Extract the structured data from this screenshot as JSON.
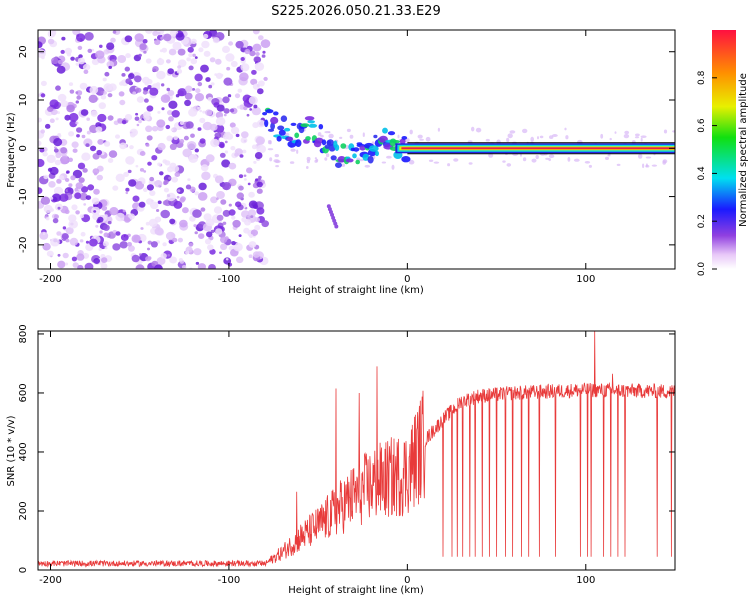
{
  "title": "S225.2026.050.21.33.E29",
  "colors": {
    "signal_line": "#e83a3a",
    "noise_purple": "#7a2be0",
    "band": "#e8204a"
  },
  "chart_data": [
    {
      "type": "heatmap",
      "xlabel": "Height of straight line (km)",
      "ylabel": "Frequency (Hz)",
      "xlim": [
        -207,
        150
      ],
      "ylim": [
        -25,
        24.5
      ],
      "xticks": [
        {
          "value": -200,
          "label": "-200"
        },
        {
          "value": -100,
          "label": "-100"
        },
        {
          "value": 0,
          "label": "0"
        },
        {
          "value": 100,
          "label": "100"
        }
      ],
      "yticks": [
        {
          "value": 20,
          "label": "20"
        },
        {
          "value": 10,
          "label": "10"
        },
        {
          "value": 0,
          "label": "0"
        },
        {
          "value": -10,
          "label": "-10"
        },
        {
          "value": -20,
          "label": "-20"
        }
      ],
      "noise_region_x": [
        -207,
        -79
      ],
      "carrier_track": [
        {
          "x": -80,
          "y": 6
        },
        {
          "x": -70,
          "y": 4
        },
        {
          "x": -62,
          "y": 3
        },
        {
          "x": -55,
          "y": 4
        },
        {
          "x": -48,
          "y": 2
        },
        {
          "x": -40,
          "y": -1
        },
        {
          "x": -32,
          "y": -2
        },
        {
          "x": -24,
          "y": -1
        },
        {
          "x": -16,
          "y": 1
        },
        {
          "x": -12,
          "y": 3
        },
        {
          "x": -6,
          "y": 0
        },
        {
          "x": 0,
          "y": 0
        },
        {
          "x": 150,
          "y": 0
        }
      ],
      "colorbar": {
        "label": "Normalized spectral amplitude",
        "range": [
          0,
          1
        ],
        "ticks": [
          {
            "value": 0.0,
            "label": "0.0"
          },
          {
            "value": 0.2,
            "label": "0.2"
          },
          {
            "value": 0.4,
            "label": "0.4"
          },
          {
            "value": 0.6,
            "label": "0.6"
          },
          {
            "value": 0.8,
            "label": "0.8"
          }
        ]
      }
    },
    {
      "type": "line",
      "xlabel": "Height of straight line (km)",
      "ylabel": "SNR (10 * v/v)",
      "xlim": [
        -207,
        150
      ],
      "ylim": [
        0,
        810
      ],
      "xticks": [
        {
          "value": -200,
          "label": "-200"
        },
        {
          "value": -100,
          "label": "-100"
        },
        {
          "value": 0,
          "label": "0"
        },
        {
          "value": 100,
          "label": "100"
        }
      ],
      "yticks": [
        {
          "value": 0,
          "label": "0"
        },
        {
          "value": 200,
          "label": "200"
        },
        {
          "value": 400,
          "label": "400"
        },
        {
          "value": 600,
          "label": "600"
        },
        {
          "value": 800,
          "label": "800"
        }
      ],
      "series": [
        {
          "name": "SNR",
          "trend": [
            {
              "x": -207,
              "y": 20
            },
            {
              "x": -80,
              "y": 20
            },
            {
              "x": -70,
              "y": 60
            },
            {
              "x": -60,
              "y": 110
            },
            {
              "x": -50,
              "y": 150
            },
            {
              "x": -40,
              "y": 200
            },
            {
              "x": -30,
              "y": 250
            },
            {
              "x": -20,
              "y": 290
            },
            {
              "x": -10,
              "y": 310
            },
            {
              "x": 0,
              "y": 330
            },
            {
              "x": 10,
              "y": 440
            },
            {
              "x": 20,
              "y": 510
            },
            {
              "x": 30,
              "y": 570
            },
            {
              "x": 40,
              "y": 590
            },
            {
              "x": 60,
              "y": 600
            },
            {
              "x": 80,
              "y": 605
            },
            {
              "x": 100,
              "y": 610
            },
            {
              "x": 150,
              "y": 605
            }
          ],
          "spikes": [
            {
              "x": -62,
              "y": 265
            },
            {
              "x": -40,
              "y": 615
            },
            {
              "x": -27,
              "y": 600
            },
            {
              "x": -17,
              "y": 690
            },
            {
              "x": 105,
              "y": 810
            },
            {
              "x": 115,
              "y": 665
            }
          ],
          "dropouts_x": [
            20,
            25,
            28,
            31,
            35,
            38,
            42,
            46,
            50,
            55,
            59,
            64,
            68,
            74,
            83,
            97,
            101,
            103,
            110,
            114,
            118,
            122,
            140,
            148
          ],
          "dropout_min": 45
        }
      ]
    }
  ]
}
